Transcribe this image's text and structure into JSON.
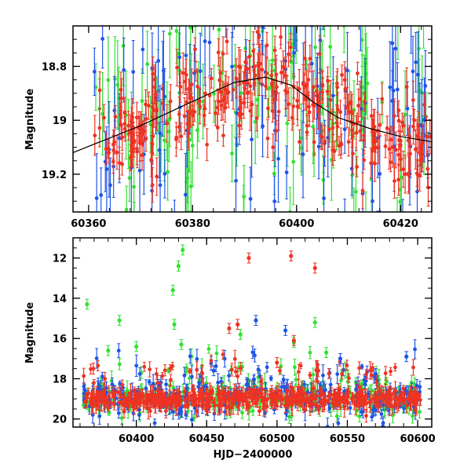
{
  "colors": {
    "green": "#33e033",
    "blue": "#1f55e6",
    "red": "#ee3322",
    "black": "#000000"
  },
  "chart_data": [
    {
      "type": "scatter",
      "panel": "top",
      "xlabel": "",
      "ylabel": "Magnitude",
      "xlim": [
        60357,
        60426
      ],
      "ylim": [
        18.65,
        19.34
      ],
      "y_inverted": true,
      "xticks": [
        60360,
        60380,
        60400,
        60420
      ],
      "yticks": [
        18.8,
        19,
        19.2
      ],
      "tick_labels_x": [
        "60360",
        "60380",
        "60400",
        "60420"
      ],
      "tick_labels_y": [
        "18.8",
        "19",
        "19.2"
      ],
      "model_curve": {
        "color": "black",
        "x": [
          60357,
          60370,
          60380,
          60388,
          60394,
          60399,
          60403,
          60408,
          60414,
          60420,
          60426
        ],
        "y": [
          19.12,
          19.02,
          18.93,
          18.86,
          18.84,
          18.87,
          18.93,
          18.99,
          19.03,
          19.06,
          19.08
        ]
      },
      "series": [
        {
          "color": "green",
          "x_range": [
            60361,
            60426
          ],
          "scatter": 0.2,
          "n": 130,
          "errorbar": 0.11
        },
        {
          "color": "blue",
          "x_range": [
            60361,
            60426
          ],
          "scatter": 0.22,
          "n": 120,
          "errorbar": 0.12
        },
        {
          "color": "red",
          "x_range": [
            60361,
            60426
          ],
          "scatter": 0.09,
          "n": 320,
          "errorbar": 0.05
        }
      ]
    },
    {
      "type": "scatter",
      "panel": "bottom",
      "xlabel": "HJD−2400000",
      "ylabel": "Magnitude",
      "xlim": [
        60355,
        60610
      ],
      "ylim": [
        11,
        20.4
      ],
      "y_inverted": true,
      "xticks": [
        60400,
        60450,
        60500,
        60550,
        60600
      ],
      "yticks": [
        12,
        14,
        16,
        18,
        20
      ],
      "tick_labels_x": [
        "60400",
        "60450",
        "60500",
        "60550",
        "60600"
      ],
      "tick_labels_y": [
        "12",
        "14",
        "16",
        "18",
        "20"
      ],
      "series": [
        {
          "color": "green",
          "x_range": [
            60362,
            60602
          ],
          "base": 18.9,
          "scatter": 0.45,
          "n": 260
        },
        {
          "color": "blue",
          "x_range": [
            60362,
            60602
          ],
          "base": 18.9,
          "scatter": 0.5,
          "n": 300
        },
        {
          "color": "red",
          "x_range": [
            60362,
            60602
          ],
          "base": 19.0,
          "scatter": 0.22,
          "n": 550
        }
      ],
      "outliers": [
        {
          "color": "green",
          "x": 60365,
          "y": 14.3
        },
        {
          "color": "green",
          "x": 60388,
          "y": 15.1
        },
        {
          "color": "green",
          "x": 60426,
          "y": 13.6
        },
        {
          "color": "green",
          "x": 60430,
          "y": 12.4
        },
        {
          "color": "green",
          "x": 60433,
          "y": 11.6
        },
        {
          "color": "green",
          "x": 60427,
          "y": 15.3
        },
        {
          "color": "green",
          "x": 60432,
          "y": 16.3
        },
        {
          "color": "green",
          "x": 60474,
          "y": 15.8
        },
        {
          "color": "green",
          "x": 60527,
          "y": 15.2
        },
        {
          "color": "green",
          "x": 60512,
          "y": 16.2
        },
        {
          "color": "green",
          "x": 60535,
          "y": 16.7
        },
        {
          "color": "green",
          "x": 60400,
          "y": 16.4
        },
        {
          "color": "green",
          "x": 60380,
          "y": 16.6
        },
        {
          "color": "red",
          "x": 60480,
          "y": 12.0
        },
        {
          "color": "red",
          "x": 60510,
          "y": 11.9
        },
        {
          "color": "red",
          "x": 60527,
          "y": 12.5
        },
        {
          "color": "red",
          "x": 60466,
          "y": 15.5
        },
        {
          "color": "red",
          "x": 60472,
          "y": 15.3
        },
        {
          "color": "red",
          "x": 60512,
          "y": 16.1
        },
        {
          "color": "red",
          "x": 60500,
          "y": 17.2
        },
        {
          "color": "blue",
          "x": 60485,
          "y": 15.1
        },
        {
          "color": "blue",
          "x": 60506,
          "y": 15.6
        },
        {
          "color": "blue",
          "x": 60455,
          "y": 17.6
        },
        {
          "color": "blue",
          "x": 60545,
          "y": 17.0
        },
        {
          "color": "blue",
          "x": 60592,
          "y": 16.9
        }
      ]
    }
  ]
}
